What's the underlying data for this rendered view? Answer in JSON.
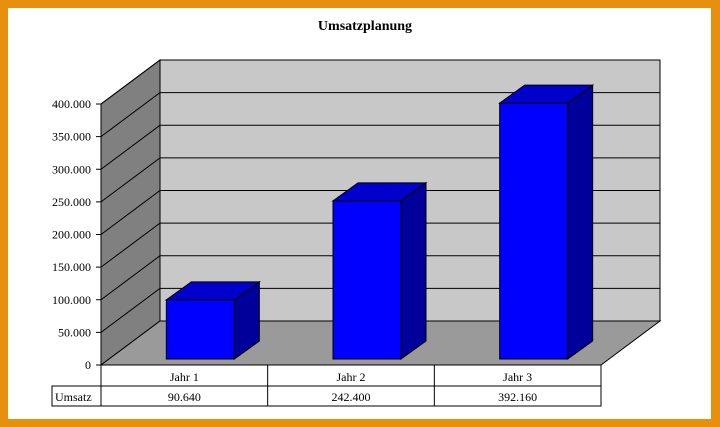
{
  "colors": {
    "frame": "#e6900e",
    "back_wall": "#c8c8c8",
    "side_wall": "#808080",
    "floor": "#9a9a9a",
    "bar_front": "#0000ff",
    "bar_top": "#0000cc",
    "bar_side": "#00009a"
  },
  "chart_data": {
    "type": "bar",
    "title": "Umsatzplanung",
    "categories": [
      "Jahr 1",
      "Jahr 2",
      "Jahr 3"
    ],
    "series": [
      {
        "name": "Umsatz",
        "values": [
          90640,
          242400,
          392160
        ]
      }
    ],
    "table": {
      "row_label": "Umsatz",
      "values": [
        "90.640",
        "242.400",
        "392.160"
      ]
    },
    "y_ticks": [
      "0",
      "50.000",
      "100.000",
      "150.000",
      "200.000",
      "250.000",
      "300.000",
      "350.000",
      "400.000"
    ],
    "ylim": [
      0,
      400000
    ],
    "grid": true,
    "legend": "none",
    "style": "3d-column"
  }
}
